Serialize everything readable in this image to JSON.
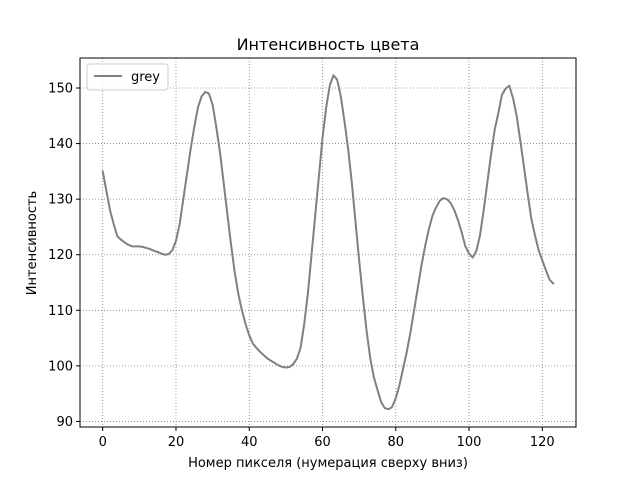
{
  "chart_data": {
    "type": "line",
    "title": "Интенсивность цвета",
    "xlabel": "Номер пикселя (нумерация сверху вниз)",
    "ylabel": "Интенсивность",
    "xlim": [
      -6.2,
      129.2
    ],
    "ylim": [
      89.0,
      155.4
    ],
    "xticks": [
      0,
      20,
      40,
      60,
      80,
      100,
      120
    ],
    "yticks": [
      90,
      100,
      110,
      120,
      130,
      140,
      150
    ],
    "grid": true,
    "grid_style": "dotted",
    "legend_position": "top-left",
    "series": [
      {
        "name": "grey",
        "color": "#808080",
        "x": [
          0,
          1,
          2,
          3,
          4,
          5,
          6,
          7,
          8,
          9,
          10,
          11,
          12,
          13,
          14,
          15,
          16,
          17,
          18,
          19,
          20,
          21,
          22,
          23,
          24,
          25,
          26,
          27,
          28,
          29,
          30,
          31,
          32,
          33,
          34,
          35,
          36,
          37,
          38,
          39,
          40,
          41,
          42,
          43,
          44,
          45,
          46,
          47,
          48,
          49,
          50,
          51,
          52,
          53,
          54,
          55,
          56,
          57,
          58,
          59,
          60,
          61,
          62,
          63,
          64,
          65,
          66,
          67,
          68,
          69,
          70,
          71,
          72,
          73,
          74,
          75,
          76,
          77,
          78,
          79,
          80,
          81,
          82,
          83,
          84,
          85,
          86,
          87,
          88,
          89,
          90,
          91,
          92,
          93,
          94,
          95,
          96,
          97,
          98,
          99,
          100,
          101,
          102,
          103,
          104,
          105,
          106,
          107,
          108,
          109,
          110,
          111,
          112,
          113,
          114,
          115,
          116,
          117,
          118,
          119,
          120,
          121,
          122,
          123
        ],
        "y": [
          135,
          131.5,
          128,
          125.5,
          123.3,
          122.7,
          122.2,
          121.8,
          121.5,
          121.5,
          121.5,
          121.4,
          121.2,
          121,
          120.7,
          120.5,
          120.2,
          120,
          120.1,
          120.8,
          122.5,
          125.5,
          130,
          134.5,
          139,
          143,
          146.5,
          148.5,
          149.3,
          149,
          147,
          143,
          138.5,
          133,
          127.5,
          122,
          117,
          113,
          110,
          107.5,
          105.5,
          104,
          103.2,
          102.5,
          101.9,
          101.3,
          100.9,
          100.5,
          100.1,
          99.8,
          99.7,
          99.8,
          100.3,
          101.3,
          103.2,
          107.5,
          113,
          120,
          127,
          134,
          141,
          146.5,
          150.5,
          152.3,
          151.5,
          148.5,
          144,
          139,
          133,
          126,
          119,
          112.5,
          106.5,
          101.5,
          98,
          95.7,
          93.5,
          92.4,
          92.2,
          92.6,
          94.2,
          96.5,
          99.5,
          102.5,
          106,
          110,
          114,
          118,
          121.5,
          124.5,
          127,
          128.5,
          129.7,
          130.2,
          130,
          129.3,
          128,
          126.2,
          124,
          121.5,
          120.2,
          119.5,
          120.7,
          123.5,
          128,
          133,
          138,
          142.5,
          145.5,
          148.8,
          149.9,
          150.4,
          148.2,
          145,
          140.5,
          135.8,
          131,
          126.5,
          123.5,
          120.8,
          119,
          117.2,
          115.5,
          114.8
        ]
      }
    ]
  }
}
